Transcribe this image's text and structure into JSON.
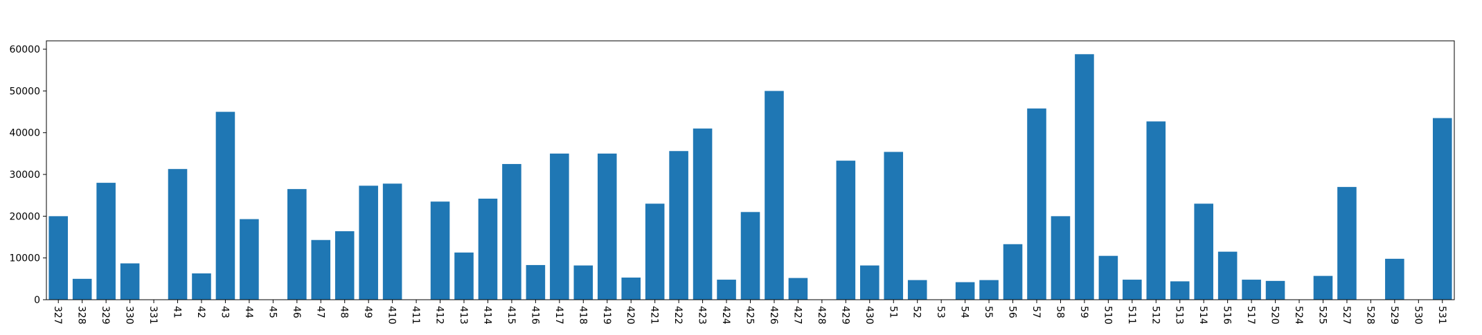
{
  "chart_data": {
    "type": "bar",
    "title": "",
    "xlabel": "",
    "ylabel": "",
    "ylim": [
      0,
      62000
    ],
    "yticks": [
      0,
      10000,
      20000,
      30000,
      40000,
      50000,
      60000
    ],
    "grid": false,
    "bar_color": "#1f77b4",
    "categories": [
      "327",
      "328",
      "329",
      "330",
      "331",
      "41",
      "42",
      "43",
      "44",
      "45",
      "46",
      "47",
      "48",
      "49",
      "410",
      "411",
      "412",
      "413",
      "414",
      "415",
      "416",
      "417",
      "418",
      "419",
      "420",
      "421",
      "422",
      "423",
      "424",
      "425",
      "426",
      "427",
      "428",
      "429",
      "430",
      "51",
      "52",
      "53",
      "54",
      "55",
      "56",
      "57",
      "58",
      "59",
      "510",
      "511",
      "512",
      "513",
      "514",
      "516",
      "517",
      "520",
      "524",
      "525",
      "527",
      "528",
      "529",
      "530",
      "531"
    ],
    "values": [
      20000,
      5000,
      28000,
      8700,
      0,
      31300,
      6300,
      45000,
      19300,
      0,
      26500,
      14300,
      16400,
      27300,
      27800,
      0,
      23500,
      11300,
      24200,
      32500,
      8300,
      35000,
      8200,
      35000,
      5300,
      23000,
      35600,
      41000,
      4800,
      21000,
      50000,
      5200,
      0,
      33300,
      8200,
      35400,
      4700,
      0,
      4200,
      4700,
      13300,
      45800,
      20000,
      58800,
      10500,
      4800,
      42700,
      4400,
      23000,
      11500,
      4800,
      4500,
      0,
      5700,
      27000,
      0,
      9800,
      0,
      43500
    ]
  }
}
